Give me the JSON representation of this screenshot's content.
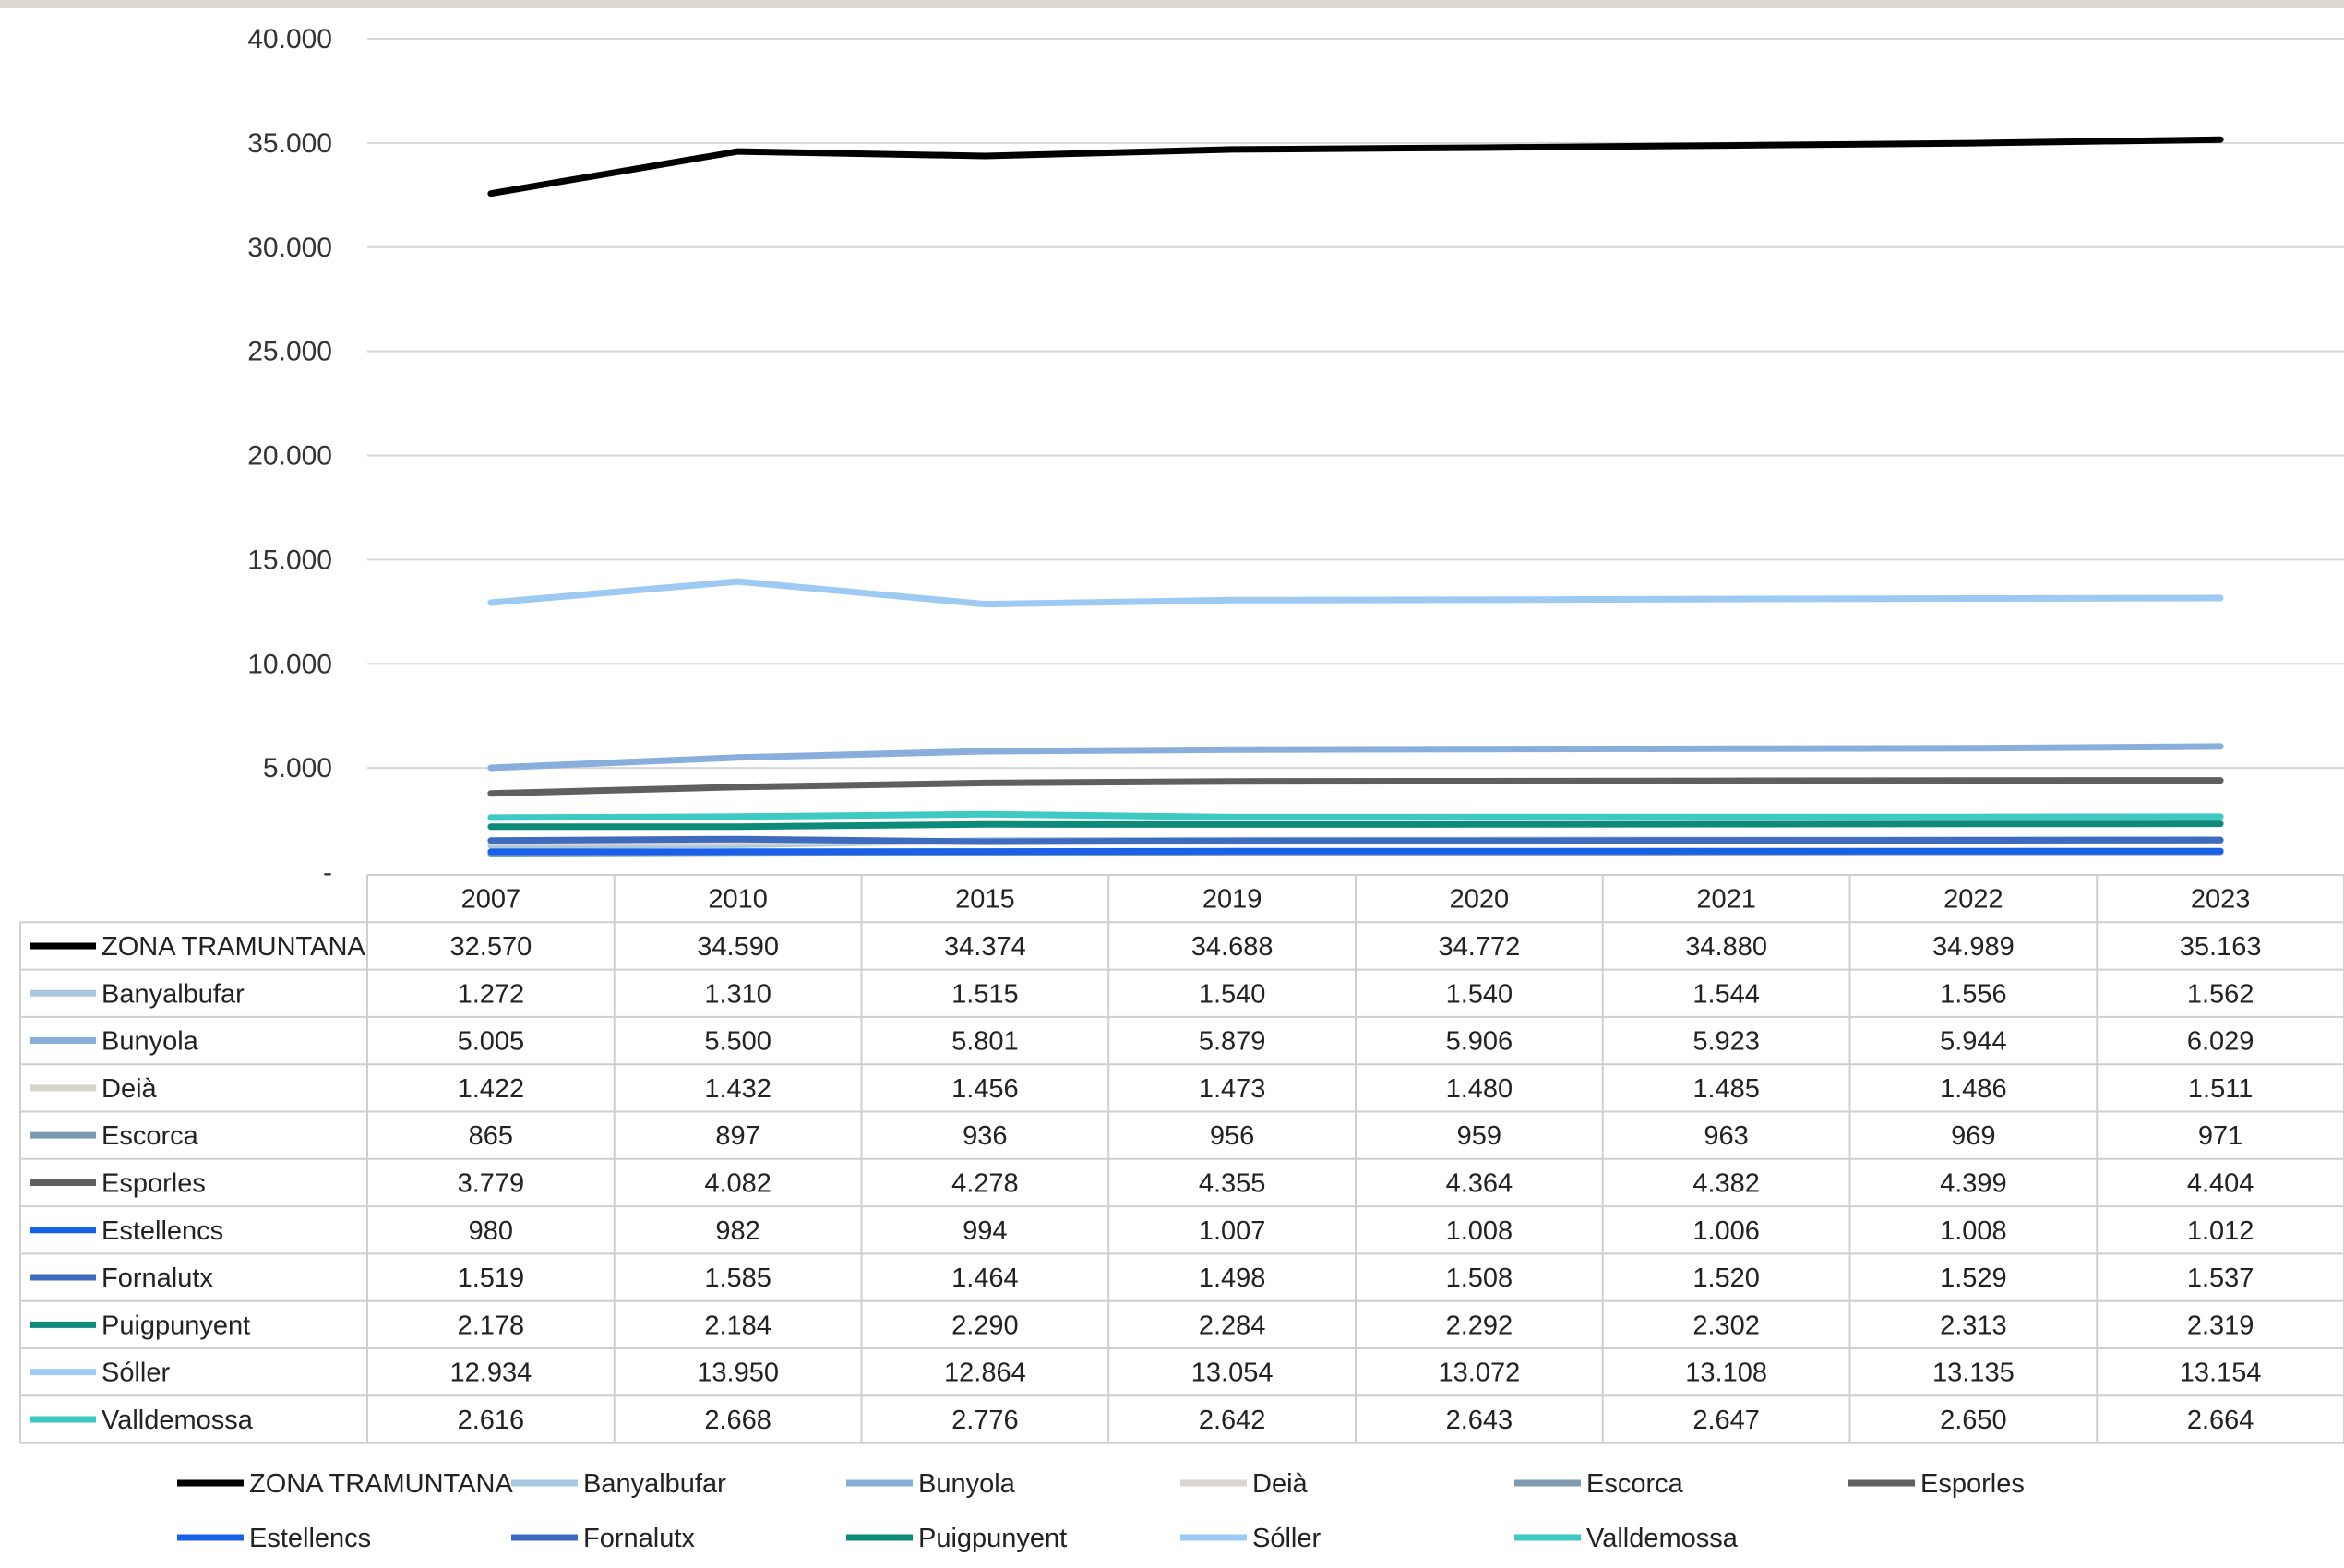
{
  "chart_data": {
    "type": "line",
    "title": "",
    "xlabel": "",
    "ylabel": "",
    "categories": [
      "2007",
      "2010",
      "2015",
      "2019",
      "2020",
      "2021",
      "2022",
      "2023"
    ],
    "ylim": [
      0,
      40000
    ],
    "yticks": [
      "-",
      "5.000",
      "10.000",
      "15.000",
      "20.000",
      "25.000",
      "30.000",
      "35.000",
      "40.000"
    ],
    "grid": "horizontal",
    "legend_position": "bottom",
    "data_table": true,
    "series": [
      {
        "name": "ZONA TRAMUNTANA",
        "color": "#000000",
        "values": [
          32570,
          34590,
          34374,
          34688,
          34772,
          34880,
          34989,
          35163
        ],
        "labels": [
          "32.570",
          "34.590",
          "34.374",
          "34.688",
          "34.772",
          "34.880",
          "34.989",
          "35.163"
        ]
      },
      {
        "name": "Banyalbufar",
        "color": "#a9c8df",
        "values": [
          1272,
          1310,
          1515,
          1540,
          1540,
          1544,
          1556,
          1562
        ],
        "labels": [
          "1.272",
          "1.310",
          "1.515",
          "1.540",
          "1.540",
          "1.544",
          "1.556",
          "1.562"
        ]
      },
      {
        "name": "Bunyola",
        "color": "#8aaedb",
        "values": [
          5005,
          5500,
          5801,
          5879,
          5906,
          5923,
          5944,
          6029
        ],
        "labels": [
          "5.005",
          "5.500",
          "5.801",
          "5.879",
          "5.906",
          "5.923",
          "5.944",
          "6.029"
        ]
      },
      {
        "name": "Deià",
        "color": "#d8d5d0",
        "values": [
          1422,
          1432,
          1456,
          1473,
          1480,
          1485,
          1486,
          1511
        ],
        "labels": [
          "1.422",
          "1.432",
          "1.456",
          "1.473",
          "1.480",
          "1.485",
          "1.486",
          "1.511"
        ]
      },
      {
        "name": "Escorca",
        "color": "#7f9bb0",
        "values": [
          865,
          897,
          936,
          956,
          959,
          963,
          969,
          971
        ],
        "labels": [
          "865",
          "897",
          "936",
          "956",
          "959",
          "963",
          "969",
          "971"
        ]
      },
      {
        "name": "Esporles",
        "color": "#5f5f5f",
        "values": [
          3779,
          4082,
          4278,
          4355,
          4364,
          4382,
          4399,
          4404
        ],
        "labels": [
          "3.779",
          "4.082",
          "4.278",
          "4.355",
          "4.364",
          "4.382",
          "4.399",
          "4.404"
        ]
      },
      {
        "name": "Estellencs",
        "color": "#1760e8",
        "values": [
          980,
          982,
          994,
          1007,
          1008,
          1006,
          1008,
          1012
        ],
        "labels": [
          "980",
          "982",
          "994",
          "1.007",
          "1.008",
          "1.006",
          "1.008",
          "1.012"
        ]
      },
      {
        "name": "Fornalutx",
        "color": "#3f6bbf",
        "values": [
          1519,
          1585,
          1464,
          1498,
          1508,
          1520,
          1529,
          1537
        ],
        "labels": [
          "1.519",
          "1.585",
          "1.464",
          "1.498",
          "1.508",
          "1.520",
          "1.529",
          "1.537"
        ]
      },
      {
        "name": "Puigpunyent",
        "color": "#0e8a7a",
        "values": [
          2178,
          2184,
          2290,
          2284,
          2292,
          2302,
          2313,
          2319
        ],
        "labels": [
          "2.178",
          "2.184",
          "2.290",
          "2.284",
          "2.292",
          "2.302",
          "2.313",
          "2.319"
        ]
      },
      {
        "name": "Sóller",
        "color": "#9ccaf2",
        "values": [
          12934,
          13950,
          12864,
          13054,
          13072,
          13108,
          13135,
          13154
        ],
        "labels": [
          "12.934",
          "13.950",
          "12.864",
          "13.054",
          "13.072",
          "13.108",
          "13.135",
          "13.154"
        ]
      },
      {
        "name": "Valldemossa",
        "color": "#3ec9c2",
        "values": [
          2616,
          2668,
          2776,
          2642,
          2643,
          2647,
          2650,
          2664
        ],
        "labels": [
          "2.616",
          "2.668",
          "2.776",
          "2.642",
          "2.643",
          "2.647",
          "2.650",
          "2.664"
        ]
      }
    ]
  }
}
